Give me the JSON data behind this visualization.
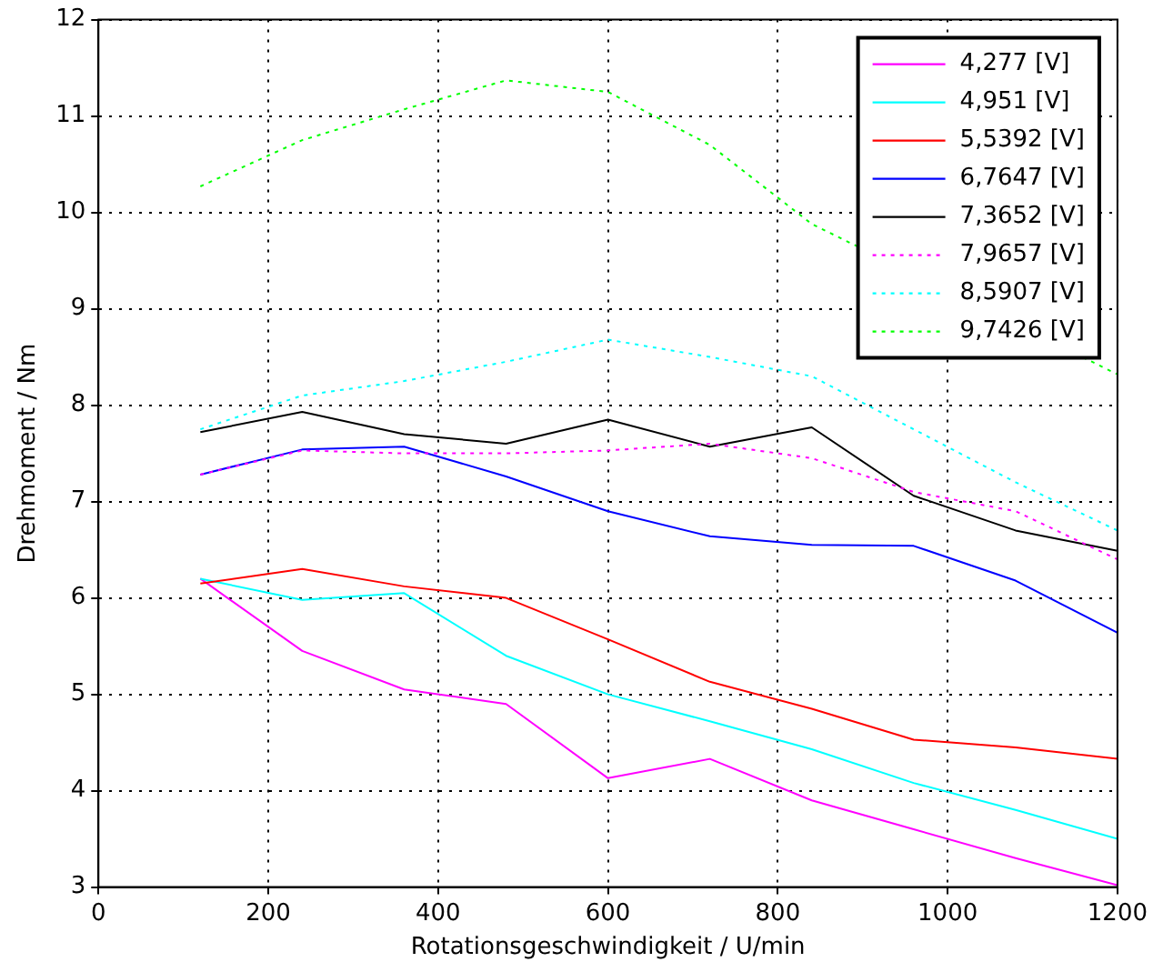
{
  "chart_data": {
    "type": "line",
    "xlabel": "Rotationsgeschwindigkeit / U/min",
    "ylabel": "Drehmoment / Nm",
    "x": [
      120,
      240,
      360,
      480,
      600,
      720,
      840,
      960,
      1080,
      1200
    ],
    "xlim": [
      0,
      1200
    ],
    "xticks": [
      0,
      200,
      400,
      600,
      800,
      1000,
      1200
    ],
    "ylim": [
      3,
      12
    ],
    "yticks": [
      3,
      4,
      5,
      6,
      7,
      8,
      9,
      10,
      11,
      12
    ],
    "grid": true,
    "legend": "top right",
    "marker": "none",
    "series": [
      {
        "name": "4,277 [V]",
        "color": "#ff00ff",
        "line_style": "solid",
        "values": [
          6.2,
          5.45,
          5.05,
          4.9,
          4.13,
          4.33,
          3.9,
          3.6,
          3.3,
          3.02
        ]
      },
      {
        "name": "4,951 [V]",
        "color": "#00ffff",
        "line_style": "solid",
        "values": [
          6.2,
          5.98,
          6.05,
          5.4,
          5.0,
          4.72,
          4.43,
          4.08,
          3.8,
          3.5
        ]
      },
      {
        "name": "5,5392 [V]",
        "color": "#ff0000",
        "line_style": "solid",
        "values": [
          6.15,
          6.3,
          6.12,
          6.0,
          5.57,
          5.13,
          4.85,
          4.53,
          4.45,
          4.33
        ]
      },
      {
        "name": "6,7647 [V]",
        "color": "#0000ff",
        "line_style": "solid",
        "values": [
          7.28,
          7.54,
          7.57,
          7.26,
          6.9,
          6.64,
          6.55,
          6.54,
          6.18,
          5.64
        ]
      },
      {
        "name": "7,3652 [V]",
        "color": "#000000",
        "line_style": "solid",
        "values": [
          7.72,
          7.93,
          7.7,
          7.6,
          7.85,
          7.57,
          7.77,
          7.06,
          6.7,
          6.49
        ]
      },
      {
        "name": "7,9657 [V]",
        "color": "#ff00ff",
        "line_style": "dotted",
        "values": [
          7.28,
          7.53,
          7.5,
          7.5,
          7.53,
          7.6,
          7.45,
          7.1,
          6.9,
          6.4
        ]
      },
      {
        "name": "8,5907 [V]",
        "color": "#00ffff",
        "line_style": "dotted",
        "values": [
          7.75,
          8.1,
          8.25,
          8.45,
          8.68,
          8.5,
          8.3,
          7.75,
          7.2,
          6.7
        ]
      },
      {
        "name": "9,7426 [V]",
        "color": "#00ff00",
        "line_style": "dotted",
        "values": [
          10.27,
          10.75,
          11.07,
          11.37,
          11.25,
          10.7,
          9.88,
          null,
          null,
          8.32
        ]
      }
    ]
  }
}
